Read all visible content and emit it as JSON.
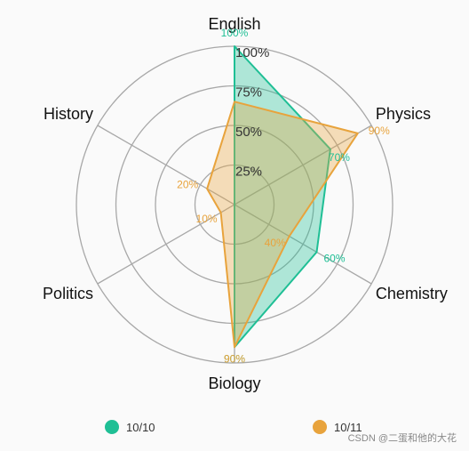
{
  "chart_data": {
    "type": "radar",
    "axes": [
      "English",
      "Physics",
      "Chemistry",
      "Biology",
      "Politics",
      "History"
    ],
    "rings": [
      "25%",
      "50%",
      "75%",
      "100%"
    ],
    "rmax": 100,
    "series": [
      {
        "name": "10/10",
        "color": "#1fbf95",
        "values": [
          100,
          70,
          60,
          90,
          0,
          0
        ],
        "labels": [
          "100%",
          "70%",
          "60%",
          "90%",
          "",
          ""
        ]
      },
      {
        "name": "10/11",
        "color": "#e8a33c",
        "values": [
          65,
          90,
          40,
          90,
          10,
          20
        ],
        "labels": [
          "",
          "90%",
          "40%",
          "90%",
          "10%",
          "20%"
        ]
      }
    ],
    "grid": true,
    "legend_position": "bottom"
  },
  "watermark": "CSDN @二蛋和他的大花"
}
